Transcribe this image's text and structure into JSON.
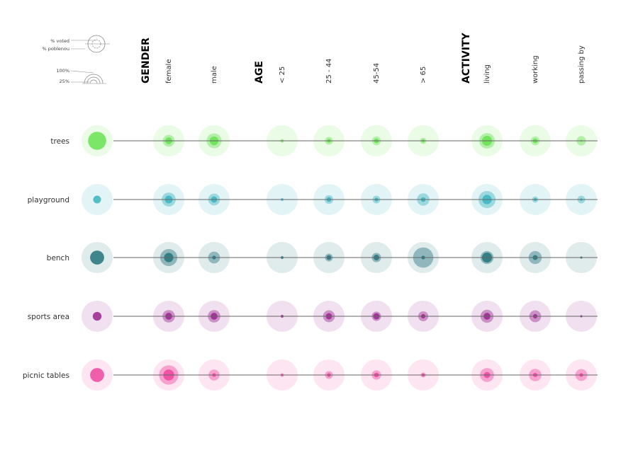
{
  "legend": {
    "voted_label": "% voted",
    "poblenou_label": "% poblenou",
    "pct_high_label": "100%",
    "pct_low_label": "25%"
  },
  "colors": {
    "trees": "#6fe35a",
    "playground": "#43b7c3",
    "bench": "#2e7b82",
    "sports_area": "#9e2f93",
    "picnic_tables": "#ef4fa3",
    "baseline": "#666666"
  },
  "chart_data": {
    "type": "bubble-matrix",
    "groups": [
      {
        "label": "GENDER",
        "columns": [
          "female",
          "male"
        ]
      },
      {
        "label": "AGE",
        "columns": [
          "< 25",
          "25 - 44",
          "45-54",
          "> 65"
        ]
      },
      {
        "label": "ACTIVITY",
        "columns": [
          "living",
          "working",
          "passing by"
        ]
      }
    ],
    "rows": [
      {
        "label": "trees",
        "color_key": "trees",
        "overall": 0.58,
        "poblenou": [
          0.38,
          0.48,
          0.12,
          0.25,
          0.28,
          0.2,
          0.5,
          0.28,
          0.3
        ],
        "voted": [
          0.22,
          0.28,
          0.05,
          0.12,
          0.15,
          0.1,
          0.32,
          0.15,
          0.06
        ]
      },
      {
        "label": "playground",
        "color_key": "playground",
        "overall": 0.25,
        "poblenou": [
          0.45,
          0.38,
          0.1,
          0.28,
          0.25,
          0.4,
          0.55,
          0.2,
          0.25
        ],
        "voted": [
          0.25,
          0.2,
          0.05,
          0.15,
          0.12,
          0.15,
          0.3,
          0.1,
          0.08
        ]
      },
      {
        "label": "bench",
        "color_key": "bench",
        "overall": 0.45,
        "poblenou": [
          0.55,
          0.38,
          0.1,
          0.25,
          0.3,
          0.65,
          0.42,
          0.42,
          0.05
        ],
        "voted": [
          0.3,
          0.12,
          0.08,
          0.15,
          0.18,
          0.12,
          0.32,
          0.16,
          0.03
        ]
      },
      {
        "label": "sports area",
        "color_key": "sports_area",
        "overall": 0.28,
        "poblenou": [
          0.4,
          0.4,
          0.1,
          0.38,
          0.3,
          0.32,
          0.42,
          0.38,
          0.05
        ],
        "voted": [
          0.22,
          0.22,
          0.08,
          0.2,
          0.2,
          0.14,
          0.22,
          0.14,
          0.03
        ]
      },
      {
        "label": "picnic tables",
        "color_key": "picnic_tables",
        "overall": 0.45,
        "poblenou": [
          0.62,
          0.35,
          0.12,
          0.25,
          0.3,
          0.16,
          0.45,
          0.4,
          0.38
        ],
        "voted": [
          0.35,
          0.12,
          0.05,
          0.12,
          0.15,
          0.1,
          0.2,
          0.14,
          0.12
        ]
      }
    ]
  }
}
